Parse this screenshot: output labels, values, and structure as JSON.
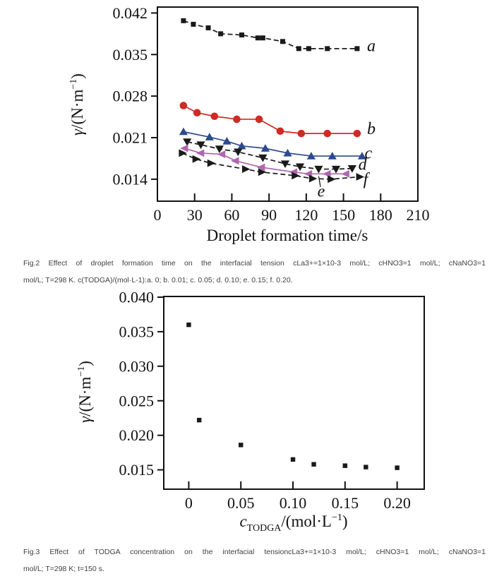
{
  "page": {
    "background": "#ffffff"
  },
  "figure2": {
    "caption_line1": "Fig.2   Effect of droplet formation time on the interfacial tension cLa3+=1×10-3 mol/L; cHNO3=1 mol/L; cNaNO3=1",
    "caption_line2": "mol/L; T=298 K. c(TODGA)/(mol·L-1):a. 0; b. 0.01; c. 0.05; d. 0.10; e. 0.15; f. 0.20."
  },
  "figure3": {
    "caption_line1": "Fig.3   Effect of TODGA concentration on the interfacial tensioncLa3+=1×10-3 mol/L; cHNO3=1 mol/L; cNaNO3=1",
    "caption_line2": "mol/L; T=298 K; t=150 s."
  },
  "chart_data": [
    {
      "id": "fig2",
      "type": "line",
      "title": "",
      "xlabel": [
        {
          "t": "Droplet formation time/s"
        }
      ],
      "ylabel": [
        {
          "t": "γ",
          "italic": true
        },
        {
          "t": "/(N·m"
        },
        {
          "t": "−1",
          "sup": true
        },
        {
          "t": ")"
        }
      ],
      "xlim": [
        0,
        210
      ],
      "ylim": [
        0.0103,
        0.043
      ],
      "xticks": [
        0,
        30,
        60,
        90,
        120,
        150,
        180,
        210
      ],
      "xtick_labels": [
        "0",
        "30",
        "60",
        "90",
        "120",
        "150",
        "180",
        "210"
      ],
      "yticks": [
        0.014,
        0.021,
        0.028,
        0.035,
        0.042
      ],
      "ytick_labels": [
        "0.014",
        "0.021",
        "0.028",
        "0.035",
        "0.042"
      ],
      "grid": false,
      "legend_position": "inline-right",
      "series": [
        {
          "name": "a",
          "color": "#1a1a1a",
          "marker": "square",
          "line": "dashed",
          "x": [
            21,
            29,
            41,
            51,
            68,
            81,
            85,
            101,
            114,
            122,
            137,
            161
          ],
          "y": [
            0.0407,
            0.0401,
            0.0395,
            0.0385,
            0.0383,
            0.0378,
            0.0378,
            0.0372,
            0.036,
            0.036,
            0.036,
            0.036
          ],
          "label": {
            "text": "a",
            "x": 169,
            "y": 0.0364
          }
        },
        {
          "name": "b",
          "color": "#d02a24",
          "marker": "circle",
          "line": "solid",
          "x": [
            21,
            32,
            46,
            64,
            82,
            99,
            116,
            137,
            161
          ],
          "y": [
            0.0264,
            0.0252,
            0.0246,
            0.0241,
            0.0241,
            0.0221,
            0.0217,
            0.0217,
            0.0217
          ],
          "label": {
            "text": "b",
            "x": 169,
            "y": 0.0224
          }
        },
        {
          "name": "c",
          "color": "#2c4b8d",
          "marker": "triangle-up",
          "line": "solid",
          "x": [
            21,
            42,
            56,
            68,
            87,
            105,
            124,
            141,
            165
          ],
          "y": [
            0.022,
            0.0211,
            0.0204,
            0.0196,
            0.0192,
            0.0184,
            0.0179,
            0.0179,
            0.0179
          ],
          "label": {
            "text": "c",
            "x": 167,
            "y": 0.0183
          }
        },
        {
          "name": "d",
          "color": "#1a1a1a",
          "marker": "triangle-down",
          "line": "dashed",
          "x": [
            24,
            35,
            50,
            65,
            85,
            103,
            115,
            130,
            144,
            157
          ],
          "y": [
            0.0203,
            0.0198,
            0.0191,
            0.0186,
            0.0176,
            0.0166,
            0.0161,
            0.0157,
            0.0157,
            0.0158
          ],
          "label": {
            "text": "d",
            "x": 162,
            "y": 0.0164
          }
        },
        {
          "name": "e",
          "color": "#b066ae",
          "marker": "triangle-left",
          "line": "solid",
          "x": [
            22,
            35,
            52,
            63,
            84,
            110,
            122,
            137,
            152
          ],
          "y": [
            0.0192,
            0.0184,
            0.0182,
            0.0171,
            0.016,
            0.0152,
            0.0149,
            0.0149,
            0.0149
          ],
          "label": {
            "text": "e",
            "x": 129,
            "y": 0.0119
          },
          "leader": {
            "x1": 131.5,
            "y1": 0.0127,
            "x2": 130,
            "y2": 0.0145
          }
        },
        {
          "name": "f",
          "color": "#1a1a1a",
          "marker": "triangle-right",
          "line": "dashed",
          "x": [
            20,
            31,
            43,
            71,
            84,
            111,
            125,
            140,
            163
          ],
          "y": [
            0.0184,
            0.0174,
            0.0167,
            0.0157,
            0.0152,
            0.0146,
            0.0141,
            0.014,
            0.0144
          ],
          "label": {
            "text": "f",
            "x": 166,
            "y": 0.0139
          }
        }
      ]
    },
    {
      "id": "fig3",
      "type": "scatter",
      "title": "",
      "xlabel": [
        {
          "t": "c",
          "italic": true
        },
        {
          "t": "TODGA",
          "sub": true
        },
        {
          "t": "/(mol·L"
        },
        {
          "t": "−1",
          "sup": true
        },
        {
          "t": ")"
        }
      ],
      "ylabel": [
        {
          "t": "γ",
          "italic": true
        },
        {
          "t": "/(N·m"
        },
        {
          "t": "−1",
          "sup": true
        },
        {
          "t": ")"
        }
      ],
      "xlim": [
        -0.024,
        0.226
      ],
      "ylim": [
        0.0122,
        0.0401
      ],
      "xticks": [
        0,
        0.05,
        0.1,
        0.15,
        0.2
      ],
      "xtick_labels": [
        "0",
        "0.05",
        "0.10",
        "0.15",
        "0.20"
      ],
      "yticks": [
        0.015,
        0.02,
        0.025,
        0.03,
        0.035,
        0.04
      ],
      "ytick_labels": [
        "0.015",
        "0.020",
        "0.025",
        "0.030",
        "0.035",
        "0.040"
      ],
      "grid": false,
      "legend_position": "none",
      "series": [
        {
          "name": "gamma-vs-cTODGA",
          "color": "#1a1a1a",
          "marker": "square",
          "line": "none",
          "x": [
            0,
            0.01,
            0.05,
            0.1,
            0.12,
            0.15,
            0.17,
            0.2
          ],
          "y": [
            0.036,
            0.0222,
            0.0186,
            0.0165,
            0.0158,
            0.0156,
            0.0154,
            0.0153
          ]
        }
      ]
    }
  ]
}
